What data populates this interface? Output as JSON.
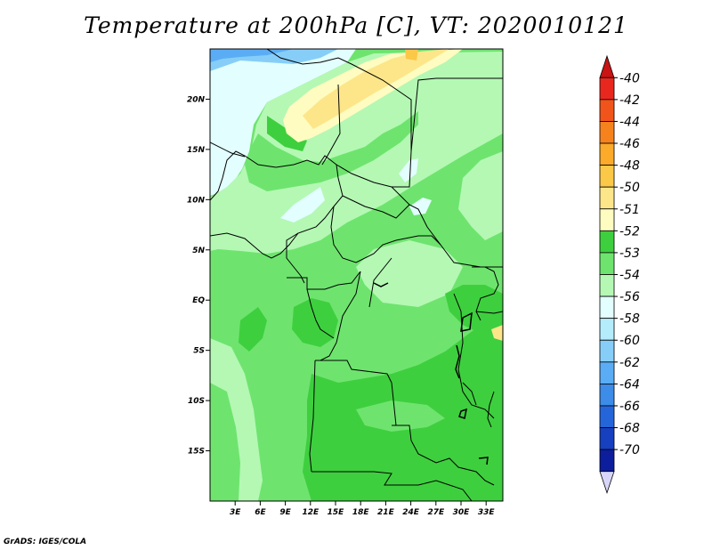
{
  "title": "Temperature at 200hPa [C], VT: 2020010121",
  "credit": "GrADS: IGES/COLA",
  "map": {
    "lat_range": [
      -20,
      25
    ],
    "lon_range": [
      0,
      35
    ],
    "lat_ticks": [
      {
        "label": "20N",
        "value": 20
      },
      {
        "label": "15N",
        "value": 15
      },
      {
        "label": "10N",
        "value": 10
      },
      {
        "label": "5N",
        "value": 5
      },
      {
        "label": "EQ",
        "value": 0
      },
      {
        "label": "5S",
        "value": -5
      },
      {
        "label": "10S",
        "value": -10
      },
      {
        "label": "15S",
        "value": -15
      }
    ],
    "lon_ticks": [
      {
        "label": "3E",
        "value": 3
      },
      {
        "label": "6E",
        "value": 6
      },
      {
        "label": "9E",
        "value": 9
      },
      {
        "label": "12E",
        "value": 12
      },
      {
        "label": "15E",
        "value": 15
      },
      {
        "label": "18E",
        "value": 18
      },
      {
        "label": "21E",
        "value": 21
      },
      {
        "label": "24E",
        "value": 24
      },
      {
        "label": "27E",
        "value": 27
      },
      {
        "label": "30E",
        "value": 30
      },
      {
        "label": "33E",
        "value": 33
      }
    ]
  },
  "colorbar": {
    "levels": [
      {
        "label": "-40",
        "color": "#e8281e"
      },
      {
        "label": "-42",
        "color": "#f0541a"
      },
      {
        "label": "-44",
        "color": "#f6821e"
      },
      {
        "label": "-46",
        "color": "#fbaa2a"
      },
      {
        "label": "-48",
        "color": "#fbc848"
      },
      {
        "label": "-50",
        "color": "#fde68a"
      },
      {
        "label": "-51",
        "color": "#fefcc0"
      },
      {
        "label": "-52",
        "color": "#3ecf3e"
      },
      {
        "label": "-53",
        "color": "#6ee46e"
      },
      {
        "label": "-54",
        "color": "#b4f8b4"
      },
      {
        "label": "-56",
        "color": "#e2fefe"
      },
      {
        "label": "-58",
        "color": "#b4ecfc"
      },
      {
        "label": "-60",
        "color": "#86cef8"
      },
      {
        "label": "-62",
        "color": "#5aadf5"
      },
      {
        "label": "-64",
        "color": "#3c8ce8"
      },
      {
        "label": "-66",
        "color": "#2466da"
      },
      {
        "label": "-68",
        "color": "#1640c0"
      },
      {
        "label": "-70",
        "color": "#0c1e9c"
      }
    ],
    "top_color": "#c81414",
    "bottom_color": "#d8d6f8"
  }
}
